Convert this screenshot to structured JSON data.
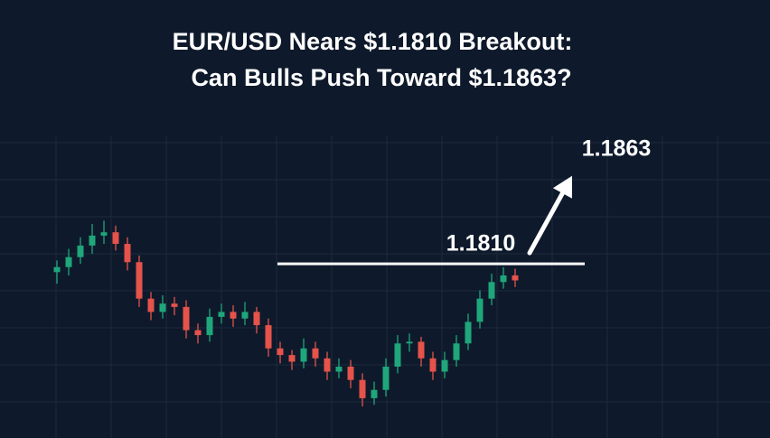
{
  "chart_data": {
    "type": "candlestick",
    "title": [
      "EUR/USD Nears $1.1810 Breakout:",
      "Can Bulls Push Toward $1.1863?"
    ],
    "ylim": [
      1.1705,
      1.1969
    ],
    "up_color": "#1fa67a",
    "down_color": "#e5534b",
    "grid": true,
    "open": [
      1.1805,
      1.1808,
      1.1814,
      1.1821,
      1.1827,
      1.1829,
      1.1822,
      1.1811,
      1.1789,
      1.1781,
      1.1786,
      1.1784,
      1.177,
      1.1767,
      1.1778,
      1.1781,
      1.1777,
      1.1781,
      1.1773,
      1.1759,
      1.1755,
      1.1751,
      1.1759,
      1.1753,
      1.1745,
      1.1748,
      1.174,
      1.1729,
      1.1734,
      1.1748,
      1.1762,
      1.1763,
      1.1753,
      1.1745,
      1.1752,
      1.1762,
      1.1775,
      1.1789,
      1.1799,
      1.1803
    ],
    "high": [
      1.1812,
      1.1819,
      1.1826,
      1.1834,
      1.1836,
      1.1833,
      1.1826,
      1.1815,
      1.1793,
      1.1791,
      1.179,
      1.1788,
      1.1774,
      1.1783,
      1.1786,
      1.1785,
      1.1787,
      1.1784,
      1.1777,
      1.1763,
      1.1758,
      1.1765,
      1.1763,
      1.1757,
      1.1753,
      1.1752,
      1.1744,
      1.1739,
      1.1753,
      1.1767,
      1.1768,
      1.1766,
      1.1757,
      1.1757,
      1.1767,
      1.178,
      1.1794,
      1.1804,
      1.1808,
      1.1807
    ],
    "low": [
      1.1798,
      1.1803,
      1.181,
      1.1816,
      1.1822,
      1.1818,
      1.1806,
      1.1784,
      1.1776,
      1.1777,
      1.1779,
      1.1765,
      1.1762,
      1.1763,
      1.1774,
      1.1772,
      1.1773,
      1.1768,
      1.1754,
      1.175,
      1.1746,
      1.1747,
      1.1748,
      1.174,
      1.1741,
      1.1735,
      1.1724,
      1.1725,
      1.173,
      1.1744,
      1.1757,
      1.1748,
      1.174,
      1.1741,
      1.1748,
      1.1758,
      1.1771,
      1.1785,
      1.1795,
      1.1796
    ],
    "close": [
      1.1808,
      1.1814,
      1.1821,
      1.1827,
      1.1829,
      1.1822,
      1.1811,
      1.1789,
      1.1781,
      1.1786,
      1.1784,
      1.177,
      1.1767,
      1.1778,
      1.1781,
      1.1777,
      1.1781,
      1.1773,
      1.1759,
      1.1755,
      1.1751,
      1.1759,
      1.1753,
      1.1745,
      1.1748,
      1.174,
      1.1729,
      1.1734,
      1.1748,
      1.1762,
      1.1763,
      1.1753,
      1.1745,
      1.1752,
      1.1762,
      1.1775,
      1.1789,
      1.1799,
      1.1803,
      1.18
    ],
    "resistance": {
      "value": 1.181,
      "label": "1.1810"
    },
    "target": {
      "value": 1.1863,
      "label": "1.1863"
    }
  }
}
